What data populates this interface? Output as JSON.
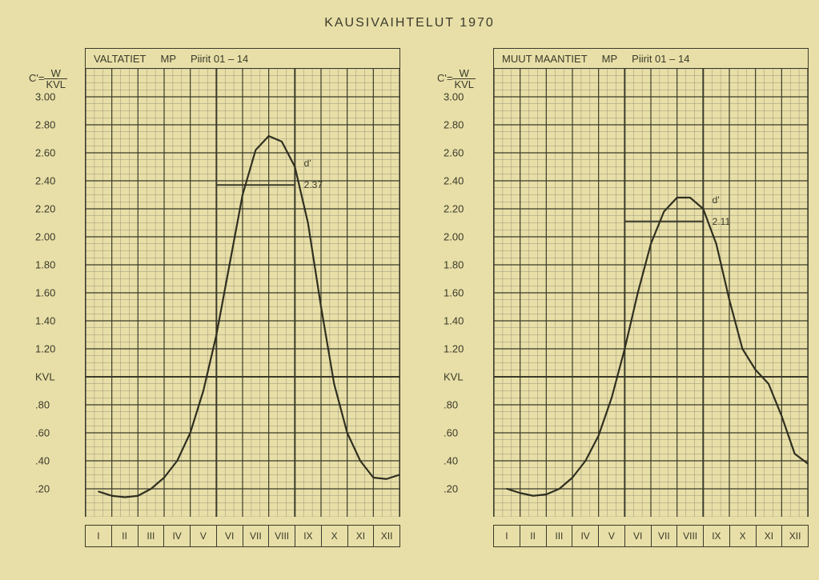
{
  "title": "KAUSIVAIHTELUT 1970",
  "paper_bg": "#e8dfa8",
  "ink": "#3a3a2a",
  "grid_minor_color": "#9a9478",
  "grid_major_color": "#3a3a2a",
  "curve_color": "#2f2f20",
  "axis_formula": {
    "prefix": "C'=",
    "num": "W",
    "den": "KVL"
  },
  "y_ticks_major": [
    {
      "v": 3.0,
      "label": "3.00"
    },
    {
      "v": 2.8,
      "label": "2.80"
    },
    {
      "v": 2.6,
      "label": "2.60"
    },
    {
      "v": 2.4,
      "label": "2.40"
    },
    {
      "v": 2.2,
      "label": "2.20"
    },
    {
      "v": 2.0,
      "label": "2.00"
    },
    {
      "v": 1.8,
      "label": "1.80"
    },
    {
      "v": 1.6,
      "label": "1.60"
    },
    {
      "v": 1.4,
      "label": "1.40"
    },
    {
      "v": 1.2,
      "label": "1.20"
    },
    {
      "v": 1.0,
      "label": "KVL"
    },
    {
      "v": 0.8,
      "label": ".80"
    },
    {
      "v": 0.6,
      "label": ".60"
    },
    {
      "v": 0.4,
      "label": ".40"
    },
    {
      "v": 0.2,
      "label": ".20"
    }
  ],
  "y_range": {
    "min": 0.0,
    "max": 3.2
  },
  "x_labels": [
    "I",
    "II",
    "III",
    "IV",
    "V",
    "VI",
    "VII",
    "VIII",
    "IX",
    "X",
    "XI",
    "XII"
  ],
  "panels": [
    {
      "key": "left",
      "header": {
        "name": "VALTATIET",
        "code": "MP",
        "region": "Piirit 01 – 14"
      },
      "d_label": "d'",
      "ref_value": 2.37,
      "ref_label": "2.37",
      "curve": [
        {
          "x": 0.5,
          "y": 0.18
        },
        {
          "x": 1.0,
          "y": 0.15
        },
        {
          "x": 1.5,
          "y": 0.14
        },
        {
          "x": 2.0,
          "y": 0.15
        },
        {
          "x": 2.5,
          "y": 0.2
        },
        {
          "x": 3.0,
          "y": 0.28
        },
        {
          "x": 3.5,
          "y": 0.4
        },
        {
          "x": 4.0,
          "y": 0.6
        },
        {
          "x": 4.5,
          "y": 0.9
        },
        {
          "x": 5.0,
          "y": 1.3
        },
        {
          "x": 5.5,
          "y": 1.8
        },
        {
          "x": 6.0,
          "y": 2.3
        },
        {
          "x": 6.5,
          "y": 2.62
        },
        {
          "x": 7.0,
          "y": 2.72
        },
        {
          "x": 7.5,
          "y": 2.68
        },
        {
          "x": 8.0,
          "y": 2.5
        },
        {
          "x": 8.5,
          "y": 2.1
        },
        {
          "x": 9.0,
          "y": 1.5
        },
        {
          "x": 9.5,
          "y": 0.95
        },
        {
          "x": 10.0,
          "y": 0.6
        },
        {
          "x": 10.5,
          "y": 0.4
        },
        {
          "x": 11.0,
          "y": 0.28
        },
        {
          "x": 11.5,
          "y": 0.27
        },
        {
          "x": 12.0,
          "y": 0.3
        }
      ]
    },
    {
      "key": "right",
      "header": {
        "name": "MUUT MAANTIET",
        "code": "MP",
        "region": "Piirit 01 – 14"
      },
      "d_label": "d'",
      "ref_value": 2.11,
      "ref_label": "2.11",
      "curve": [
        {
          "x": 0.5,
          "y": 0.2
        },
        {
          "x": 1.0,
          "y": 0.17
        },
        {
          "x": 1.5,
          "y": 0.15
        },
        {
          "x": 2.0,
          "y": 0.16
        },
        {
          "x": 2.5,
          "y": 0.2
        },
        {
          "x": 3.0,
          "y": 0.28
        },
        {
          "x": 3.5,
          "y": 0.4
        },
        {
          "x": 4.0,
          "y": 0.58
        },
        {
          "x": 4.5,
          "y": 0.85
        },
        {
          "x": 5.0,
          "y": 1.2
        },
        {
          "x": 5.5,
          "y": 1.6
        },
        {
          "x": 6.0,
          "y": 1.95
        },
        {
          "x": 6.5,
          "y": 2.18
        },
        {
          "x": 7.0,
          "y": 2.28
        },
        {
          "x": 7.5,
          "y": 2.28
        },
        {
          "x": 8.0,
          "y": 2.2
        },
        {
          "x": 8.5,
          "y": 1.95
        },
        {
          "x": 9.0,
          "y": 1.55
        },
        {
          "x": 9.5,
          "y": 1.2
        },
        {
          "x": 10.0,
          "y": 1.05
        },
        {
          "x": 10.5,
          "y": 0.95
        },
        {
          "x": 11.0,
          "y": 0.72
        },
        {
          "x": 11.5,
          "y": 0.45
        },
        {
          "x": 12.0,
          "y": 0.38
        }
      ]
    }
  ],
  "grid": {
    "minor_x_per_month": 3,
    "minor_y_step": 0.05,
    "major_y_step": 0.2,
    "heavy_x": [
      5,
      8
    ],
    "heavy_y": [
      1.0
    ],
    "line_width_minor": 0.5,
    "line_width_major": 1.2,
    "line_width_heavy": 2.0,
    "curve_width": 2.2
  }
}
